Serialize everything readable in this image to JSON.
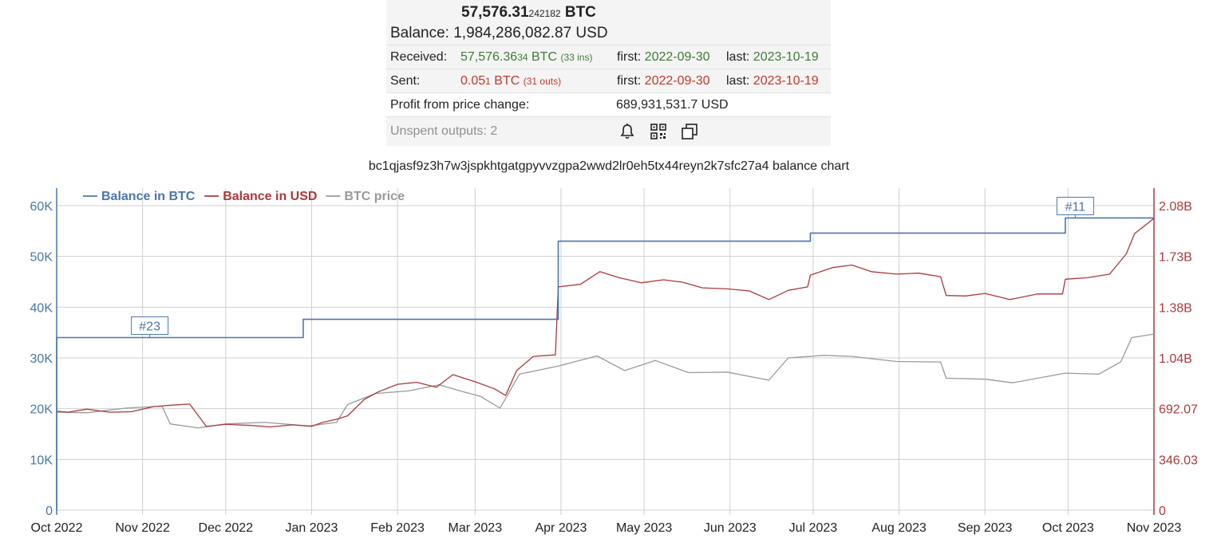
{
  "summary": {
    "btc_main": "57,576.31",
    "btc_small": "242182",
    "btc_unit": "BTC",
    "balance_label": "Balance:",
    "balance_usd": "1,984,286,082.87 USD",
    "received": {
      "label": "Received:",
      "amount_main": "57,576.36",
      "amount_small": "34",
      "unit": "BTC",
      "count": "(33 ins)",
      "first_label": "first:",
      "first_date": "2022-09-30",
      "last_label": "last:",
      "last_date": "2023-10-19"
    },
    "sent": {
      "label": "Sent:",
      "amount_main": "0.05",
      "amount_small": "1",
      "unit": "BTC",
      "count": "(31 outs)",
      "first_label": "first:",
      "first_date": "2022-09-30",
      "last_label": "last:",
      "last_date": "2023-10-19"
    },
    "profit_label": "Profit from price change:",
    "profit_value": "689,931,531.7 USD",
    "unspent": "Unspent outputs: 2",
    "icons": [
      "bell-icon",
      "qr-code-icon",
      "copy-icon"
    ]
  },
  "chart_title": "bc1qjasf9z3h7w3jspkhtgatgpyvvzgpa2wwd2lr0eh5tx44reyn2k7sfc27a4 balance chart",
  "chart_data": {
    "type": "line",
    "title": "bc1qjasf9z3h7w3jspkhtgatgpyvvzgpa2wwd2lr0eh5tx44reyn2k7sfc27a4 balance chart",
    "xlim": [
      "2022-10-01",
      "2023-11-01"
    ],
    "x_ticks": [
      "Oct 2022",
      "Nov 2022",
      "Dec 2022",
      "Jan 2023",
      "Feb 2023",
      "Mar 2023",
      "Apr 2023",
      "May 2023",
      "Jun 2023",
      "Jul 2023",
      "Aug 2023",
      "Sep 2023",
      "Oct 2023",
      "Nov 2023"
    ],
    "y_left": {
      "ticks": [
        "0",
        "10K",
        "20K",
        "30K",
        "40K",
        "50K",
        "60K"
      ],
      "ylim": [
        0,
        60000
      ],
      "color": "#4a76a8"
    },
    "y_right": {
      "ticks": [
        "0",
        "346.03",
        "692.07",
        "1.04B",
        "1.38B",
        "1.73B",
        "2.08B"
      ],
      "color": "#a83a3a"
    },
    "legend": {
      "position": "top-left",
      "entries": [
        "Balance in BTC",
        "Balance in USD",
        "BTC price"
      ]
    },
    "grid": true,
    "colors": {
      "btc": "#4a76a8",
      "usd": "#a83a3a",
      "price": "#999999"
    },
    "annotations": [
      {
        "label": "#23",
        "x": "2022-11-01",
        "y": 34000
      },
      {
        "label": "#11",
        "x": "2023-10-01",
        "y": 57576
      }
    ],
    "series": [
      {
        "name": "Balance in BTC",
        "axis": "left",
        "step": true,
        "points": [
          [
            "2022-10-01",
            0
          ],
          [
            "2022-10-01",
            34000
          ],
          [
            "2022-12-29",
            34000
          ],
          [
            "2022-12-29",
            37600
          ],
          [
            "2023-03-31",
            37600
          ],
          [
            "2023-03-31",
            53000
          ],
          [
            "2023-06-30",
            53000
          ],
          [
            "2023-06-30",
            54600
          ],
          [
            "2023-09-30",
            54600
          ],
          [
            "2023-09-30",
            57576
          ],
          [
            "2023-11-01",
            57576
          ]
        ]
      },
      {
        "name": "Balance in USD",
        "axis": "left",
        "points": [
          [
            "2022-10-01",
            19500
          ],
          [
            "2022-10-05",
            19300
          ],
          [
            "2022-10-12",
            19900
          ],
          [
            "2022-10-20",
            19300
          ],
          [
            "2022-10-28",
            19400
          ],
          [
            "2022-11-05",
            20400
          ],
          [
            "2022-11-12",
            20700
          ],
          [
            "2022-11-18",
            20900
          ],
          [
            "2022-11-24",
            16500
          ],
          [
            "2022-12-01",
            16900
          ],
          [
            "2022-12-10",
            16700
          ],
          [
            "2022-12-17",
            16400
          ],
          [
            "2022-12-25",
            16800
          ],
          [
            "2023-01-01",
            16500
          ],
          [
            "2023-01-05",
            17300
          ],
          [
            "2023-01-10",
            17900
          ],
          [
            "2023-01-14",
            18600
          ],
          [
            "2023-01-20",
            21800
          ],
          [
            "2023-01-25",
            23300
          ],
          [
            "2023-02-01",
            24800
          ],
          [
            "2023-02-08",
            25200
          ],
          [
            "2023-02-15",
            24200
          ],
          [
            "2023-02-21",
            26700
          ],
          [
            "2023-03-01",
            25300
          ],
          [
            "2023-03-08",
            23900
          ],
          [
            "2023-03-12",
            22600
          ],
          [
            "2023-03-16",
            27500
          ],
          [
            "2023-03-22",
            30300
          ],
          [
            "2023-03-30",
            30600
          ],
          [
            "2023-03-31",
            44000
          ],
          [
            "2023-04-08",
            44500
          ],
          [
            "2023-04-15",
            47000
          ],
          [
            "2023-04-22",
            45800
          ],
          [
            "2023-04-30",
            44800
          ],
          [
            "2023-05-08",
            45400
          ],
          [
            "2023-05-15",
            44900
          ],
          [
            "2023-05-22",
            43800
          ],
          [
            "2023-05-31",
            43600
          ],
          [
            "2023-06-08",
            43200
          ],
          [
            "2023-06-15",
            41500
          ],
          [
            "2023-06-22",
            43300
          ],
          [
            "2023-06-29",
            44000
          ],
          [
            "2023-06-30",
            46300
          ],
          [
            "2023-07-08",
            47800
          ],
          [
            "2023-07-15",
            48300
          ],
          [
            "2023-07-22",
            47000
          ],
          [
            "2023-07-31",
            46500
          ],
          [
            "2023-08-08",
            46700
          ],
          [
            "2023-08-16",
            46000
          ],
          [
            "2023-08-18",
            42300
          ],
          [
            "2023-08-25",
            42200
          ],
          [
            "2023-09-01",
            42700
          ],
          [
            "2023-09-10",
            41500
          ],
          [
            "2023-09-20",
            42600
          ],
          [
            "2023-09-29",
            42600
          ],
          [
            "2023-09-30",
            45500
          ],
          [
            "2023-10-08",
            45800
          ],
          [
            "2023-10-16",
            46500
          ],
          [
            "2023-10-22",
            50500
          ],
          [
            "2023-10-25",
            54500
          ],
          [
            "2023-10-29",
            56200
          ],
          [
            "2023-11-01",
            57500
          ]
        ]
      },
      {
        "name": "BTC price",
        "axis": "left",
        "points": [
          [
            "2022-10-01",
            19300
          ],
          [
            "2022-10-12",
            19200
          ],
          [
            "2022-10-26",
            20100
          ],
          [
            "2022-11-08",
            20500
          ],
          [
            "2022-11-11",
            17000
          ],
          [
            "2022-11-21",
            16200
          ],
          [
            "2022-12-01",
            17000
          ],
          [
            "2022-12-15",
            17300
          ],
          [
            "2022-12-31",
            16600
          ],
          [
            "2023-01-10",
            17300
          ],
          [
            "2023-01-14",
            20800
          ],
          [
            "2023-01-24",
            23000
          ],
          [
            "2023-02-05",
            23500
          ],
          [
            "2023-02-16",
            24700
          ],
          [
            "2023-02-25",
            23300
          ],
          [
            "2023-03-03",
            22400
          ],
          [
            "2023-03-10",
            20100
          ],
          [
            "2023-03-17",
            26800
          ],
          [
            "2023-03-31",
            28400
          ],
          [
            "2023-04-14",
            30400
          ],
          [
            "2023-04-24",
            27500
          ],
          [
            "2023-05-05",
            29500
          ],
          [
            "2023-05-17",
            27100
          ],
          [
            "2023-05-31",
            27200
          ],
          [
            "2023-06-15",
            25600
          ],
          [
            "2023-06-22",
            30000
          ],
          [
            "2023-07-05",
            30500
          ],
          [
            "2023-07-15",
            30300
          ],
          [
            "2023-07-31",
            29300
          ],
          [
            "2023-08-16",
            29200
          ],
          [
            "2023-08-18",
            26000
          ],
          [
            "2023-09-01",
            25800
          ],
          [
            "2023-09-11",
            25100
          ],
          [
            "2023-09-30",
            27000
          ],
          [
            "2023-10-12",
            26800
          ],
          [
            "2023-10-20",
            29200
          ],
          [
            "2023-10-24",
            34000
          ],
          [
            "2023-11-01",
            34700
          ]
        ]
      }
    ]
  }
}
